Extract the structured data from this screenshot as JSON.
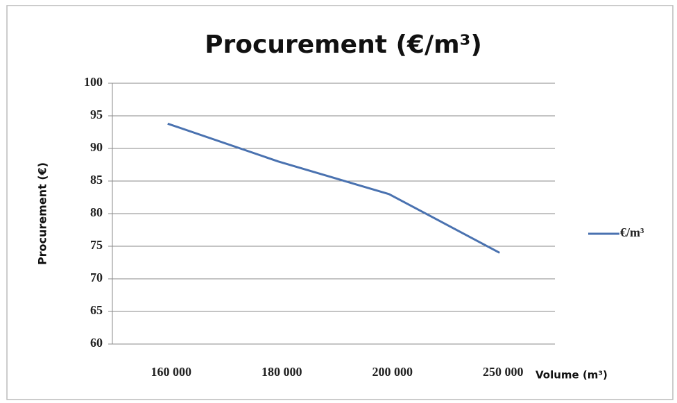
{
  "chart_data": {
    "type": "line",
    "title": "Procurement (€/m³)",
    "y_label": "Procurement (€)",
    "x_label": "Volume (m³)",
    "categories": [
      "160 000",
      "180 000",
      "200 000",
      "250 000"
    ],
    "series": [
      {
        "name": "€/m³",
        "color": "#4a72b0",
        "values": [
          93.8,
          88,
          83,
          74
        ]
      }
    ],
    "ylim": [
      60,
      100
    ],
    "yticks": [
      60,
      65,
      70,
      75,
      80,
      85,
      90,
      95,
      100
    ],
    "grid": true,
    "legend": "right"
  }
}
